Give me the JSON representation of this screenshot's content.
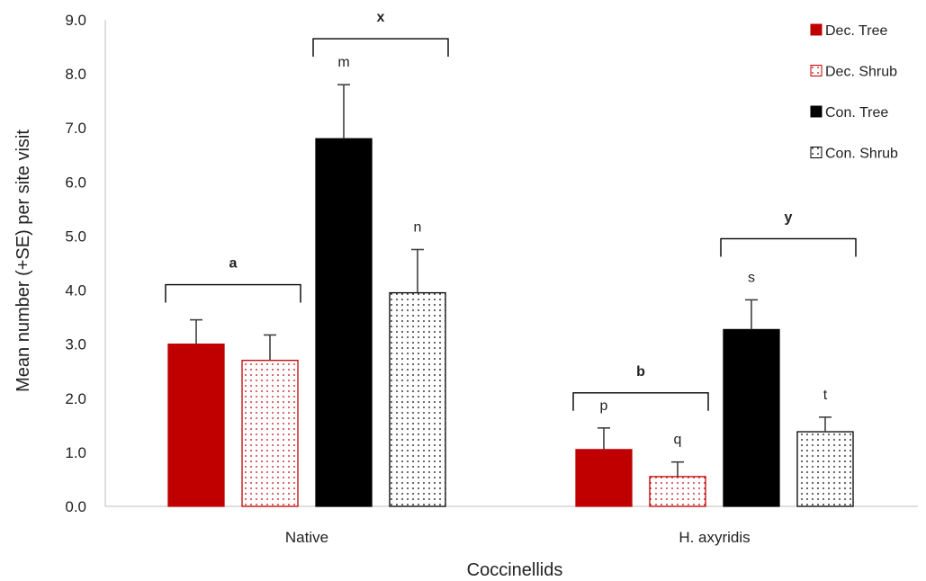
{
  "chart_data": {
    "type": "bar",
    "xlabel": "Coccinellids",
    "ylabel": "Mean number (+SE) per site visit",
    "ylim": [
      0,
      9
    ],
    "yticks": [
      "0.0",
      "1.0",
      "2.0",
      "3.0",
      "4.0",
      "5.0",
      "6.0",
      "7.0",
      "8.0",
      "9.0"
    ],
    "categories": [
      "Native",
      "H. axyridis"
    ],
    "series": [
      {
        "name": "Dec. Tree",
        "values": [
          3.0,
          1.05
        ],
        "errors": [
          0.45,
          0.4
        ],
        "letters": [
          "",
          "p"
        ],
        "color": "#c00000",
        "pattern": "solid"
      },
      {
        "name": "Dec. Shrub",
        "values": [
          2.7,
          0.55
        ],
        "errors": [
          0.47,
          0.27
        ],
        "letters": [
          "",
          "q"
        ],
        "color": "#c00000",
        "pattern": "dotted"
      },
      {
        "name": "Con. Tree",
        "values": [
          6.8,
          3.27
        ],
        "errors": [
          1.0,
          0.55
        ],
        "letters": [
          "m",
          "s"
        ],
        "color": "#000000",
        "pattern": "solid"
      },
      {
        "name": "Con. Shrub",
        "values": [
          3.95,
          1.38
        ],
        "errors": [
          0.8,
          0.27
        ],
        "letters": [
          "n",
          "t"
        ],
        "color": "#000000",
        "pattern": "dotted"
      }
    ],
    "group_brackets": [
      {
        "label": "a",
        "category": 0,
        "from_series": 0,
        "to_series": 1,
        "y": 4.1
      },
      {
        "label": "x",
        "category": 0,
        "from_series": 2,
        "to_series": 3,
        "y": 8.65
      },
      {
        "label": "b",
        "category": 1,
        "from_series": 0,
        "to_series": 1,
        "y": 2.1
      },
      {
        "label": "y",
        "category": 1,
        "from_series": 2,
        "to_series": 3,
        "y": 4.95
      }
    ],
    "legend_position": "top-right",
    "grid": false
  }
}
